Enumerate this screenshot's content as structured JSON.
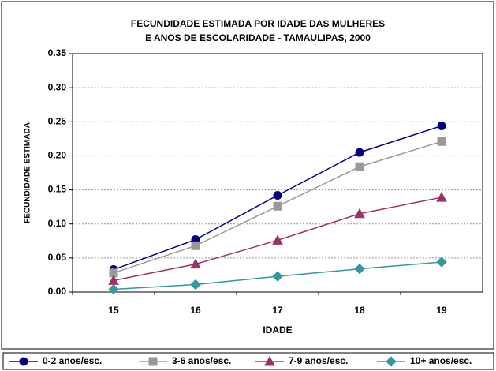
{
  "chart_data": {
    "type": "line",
    "title": [
      "FECUNDIDADE ESTIMADA POR IDADE DAS MULHERES",
      "E ANOS DE ESCOLARIDADE - TAMAULIPAS, 2000"
    ],
    "x_label": "IDADE",
    "y_label": "FECUNDIDADE ESTIMADA",
    "categories": [
      "15",
      "16",
      "17",
      "18",
      "19"
    ],
    "ylim": [
      0,
      0.35
    ],
    "yticks": [
      {
        "value": 0,
        "label": "0.00"
      },
      0.05,
      {
        "value": 0.1,
        "label": "0.10"
      },
      0.15,
      {
        "value": 0.2,
        "label": "0.20"
      },
      0.25,
      {
        "value": 0.3,
        "label": "0.30"
      },
      0.35
    ],
    "grid": true,
    "legend": "bottom",
    "series": [
      {
        "name": "0-2 anos/esc.",
        "color": "#000080",
        "marker": "circle",
        "values": [
          0.033,
          0.077,
          0.142,
          0.205,
          0.244
        ]
      },
      {
        "name": "3-6 anos/esc.",
        "color": "#999999",
        "marker": "square",
        "values": [
          0.028,
          0.068,
          0.126,
          0.184,
          0.221
        ]
      },
      {
        "name": "7-9 anos/esc.",
        "color": "#993366",
        "marker": "triangle",
        "values": [
          0.017,
          0.041,
          0.076,
          0.115,
          0.139
        ]
      },
      {
        "name": "10+ anos/esc.",
        "color": "#339999",
        "marker": "diamond",
        "values": [
          0.004,
          0.011,
          0.023,
          0.034,
          0.044
        ]
      }
    ]
  }
}
